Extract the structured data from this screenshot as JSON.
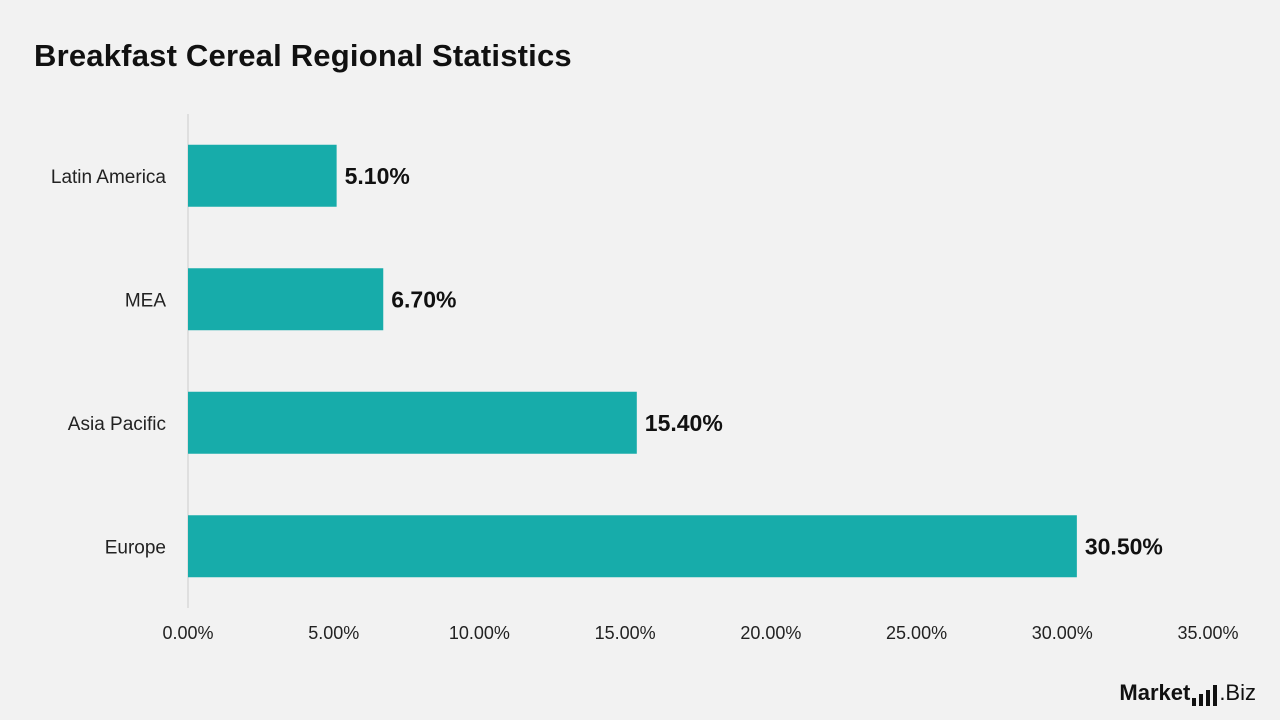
{
  "title": "Breakfast Cereal Regional Statistics",
  "logo": {
    "brand": "Market",
    "suffix": ".Biz"
  },
  "colors": {
    "bar": "#17acaa",
    "axis": "#cccccc",
    "text": "#111111",
    "background": "#f2f2f2"
  },
  "chart_data": {
    "type": "bar",
    "orientation": "horizontal",
    "title": "Breakfast Cereal Regional Statistics",
    "categories": [
      "Latin America",
      "MEA",
      "Asia Pacific",
      "Europe"
    ],
    "values": [
      5.1,
      6.7,
      15.4,
      30.5
    ],
    "value_labels": [
      "5.10%",
      "6.70%",
      "15.40%",
      "30.50%"
    ],
    "xlim": [
      0,
      35
    ],
    "xticks": [
      0,
      5,
      10,
      15,
      20,
      25,
      30,
      35
    ],
    "xtick_labels": [
      "0.00%",
      "5.00%",
      "10.00%",
      "15.00%",
      "20.00%",
      "25.00%",
      "30.00%",
      "35.00%"
    ],
    "xlabel": "",
    "ylabel": "",
    "grid": false,
    "legend": "none"
  }
}
